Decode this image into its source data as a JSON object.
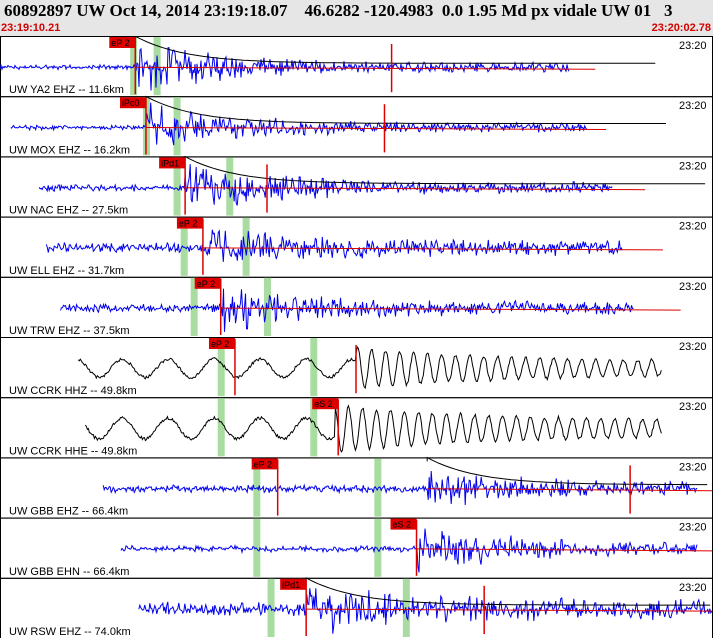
{
  "header": {
    "title": "60892897 UW Oct 14, 2014 23:19:18.07    46.6282 -120.4983  0.0 1.95 Md px vidale UW 01   3",
    "start_time": "23:19:10.21",
    "end_time": "23:20:02.78"
  },
  "chart_data": {
    "type": "seismogram",
    "time_axis": {
      "start": "23:19:10.21",
      "end": "23:20:02.78",
      "seconds_span": 52.57
    },
    "tick_label": "23:20",
    "colors": {
      "vertical": "#0000ee",
      "horizontal": "#000000",
      "pick": "#dd0000",
      "window": "#a8dca0"
    },
    "traces": [
      {
        "label": "UW YA2 EHZ -- 11.6km",
        "comp": "vertical",
        "start": 0.0,
        "end": 0.8,
        "onset": 0.19,
        "amp": 1.0,
        "noise": 0.03,
        "pick": {
          "text": "eP 2",
          "t": 0.19
        },
        "windows": [
          0.187,
          0.22
        ],
        "coda": 0.55,
        "ticks": [
          0.55
        ]
      },
      {
        "label": "UW MOX EHZ -- 16.2km",
        "comp": "vertical",
        "start": 0.015,
        "end": 0.825,
        "onset": 0.205,
        "amp": 0.85,
        "noise": 0.03,
        "pick": {
          "text": "iPc0",
          "t": 0.205
        },
        "windows": [
          0.205,
          0.248
        ],
        "coda": 0.54,
        "ticks": [
          0.54
        ]
      },
      {
        "label": "UW NAC EHZ -- 27.5km",
        "comp": "vertical",
        "start": 0.055,
        "end": 0.86,
        "onset": 0.26,
        "amp": 0.95,
        "noise": 0.1,
        "pick": {
          "text": "iPd1",
          "t": 0.26
        },
        "windows": [
          0.248,
          0.322
        ],
        "coda": 0.375,
        "ticks": [
          0.375
        ]
      },
      {
        "label": "UW ELL EHZ -- 31.7km",
        "comp": "vertical",
        "start": 0.065,
        "end": 0.875,
        "onset": 0.285,
        "amp": 0.6,
        "noise": 0.18,
        "pick": {
          "text": "eP 2",
          "t": 0.285
        },
        "windows": [
          0.258,
          0.345
        ],
        "coda": 0.0,
        "ticks": []
      },
      {
        "label": "UW TRW EHZ -- 37.5km",
        "comp": "vertical",
        "start": 0.085,
        "end": 0.89,
        "onset": 0.31,
        "amp": 0.75,
        "noise": 0.12,
        "pick": {
          "text": "eP 2",
          "t": 0.31
        },
        "windows": [
          0.272,
          0.375
        ],
        "coda": 0.0,
        "ticks": []
      },
      {
        "label": "UW CCRK HHZ -- 49.8km",
        "comp": "horizontal",
        "start": 0.11,
        "end": 0.93,
        "onset": 0.5,
        "amp": 0.65,
        "noise": 0.0,
        "pick": {
          "text": "eP 2",
          "t": 0.33
        },
        "windows": [
          0.31,
          0.44
        ],
        "coda": 0.5,
        "ticks": [
          0.5
        ]
      },
      {
        "label": "UW CCRK HHE -- 49.8km",
        "comp": "horizontal",
        "start": 0.12,
        "end": 0.93,
        "onset": 0.47,
        "amp": 0.75,
        "noise": 0.0,
        "pick": {
          "text": "eS 2",
          "t": 0.475
        },
        "windows": [
          0.31,
          0.44
        ],
        "coda": 0.0,
        "ticks": []
      },
      {
        "label": "UW GBB EHZ -- 66.4km",
        "comp": "vertical",
        "start": 0.145,
        "end": 0.98,
        "onset": 0.6,
        "amp": 0.7,
        "noise": 0.12,
        "pick": {
          "text": "eP 2",
          "t": 0.39
        },
        "windows": [
          0.36,
          0.53
        ],
        "coda": 0.885,
        "ticks": [
          0.885
        ]
      },
      {
        "label": "UW GBB EHN -- 66.4km",
        "comp": "vertical",
        "start": 0.17,
        "end": 0.98,
        "onset": 0.585,
        "amp": 0.85,
        "noise": 0.08,
        "pick": {
          "text": "eS 2",
          "t": 0.585
        },
        "windows": [
          0.36,
          0.53
        ],
        "coda": 0.0,
        "ticks": []
      },
      {
        "label": "UW RSW EHZ -- 74.0km",
        "comp": "vertical",
        "start": 0.195,
        "end": 1.0,
        "onset": 0.43,
        "amp": 0.75,
        "noise": 0.3,
        "pick": {
          "text": "iPd1",
          "t": 0.43
        },
        "windows": [
          0.38,
          0.57
        ],
        "coda": 0.68,
        "ticks": [
          0.68
        ]
      }
    ]
  }
}
